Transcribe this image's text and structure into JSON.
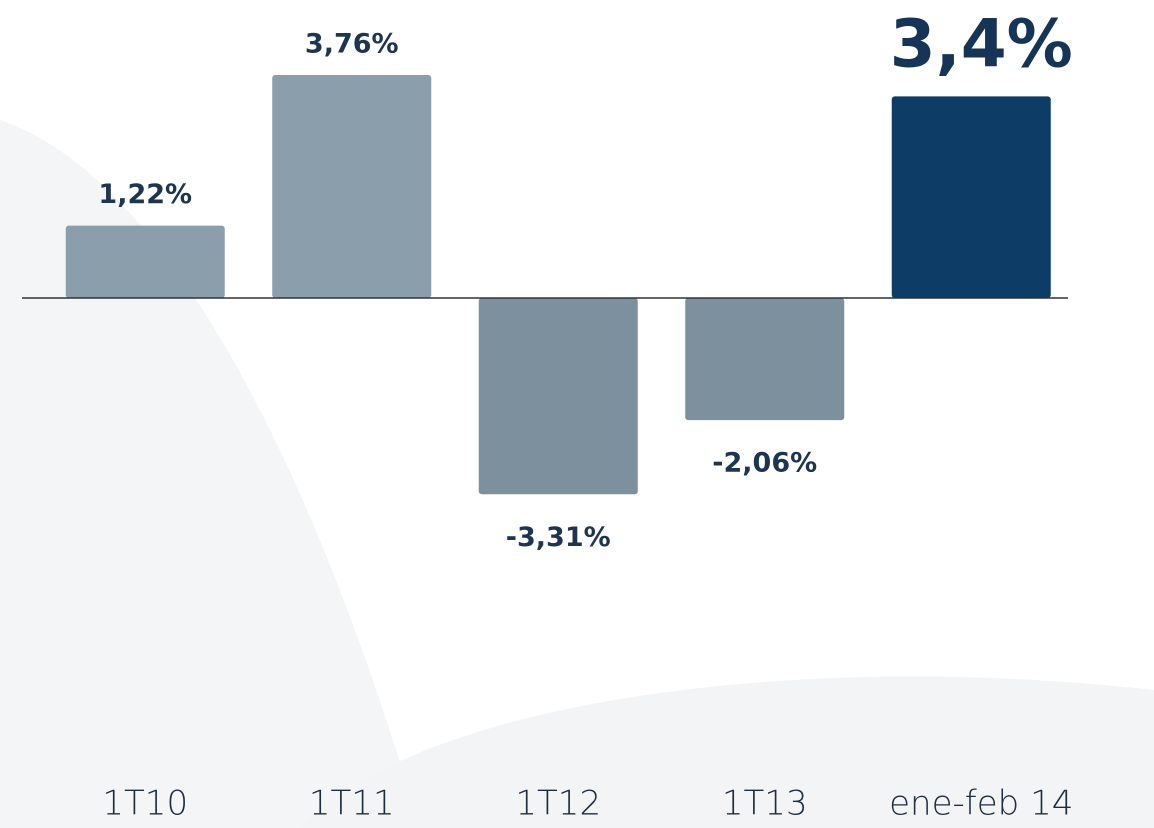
{
  "chart_data": {
    "type": "bar",
    "categories": [
      "1T10",
      "1T11",
      "1T12",
      "1T13",
      "ene-feb 14"
    ],
    "values": [
      1.22,
      3.76,
      -3.31,
      -2.06,
      3.4
    ],
    "value_labels": [
      "1,22%",
      "3,76%",
      "-3,31%",
      "-2,06%",
      "3,4%"
    ],
    "colors": [
      "#8b9eab",
      "#8b9eab",
      "#7d909d",
      "#7d909d",
      "#0d3d66"
    ],
    "ylim": [
      -8.5,
      5
    ]
  }
}
